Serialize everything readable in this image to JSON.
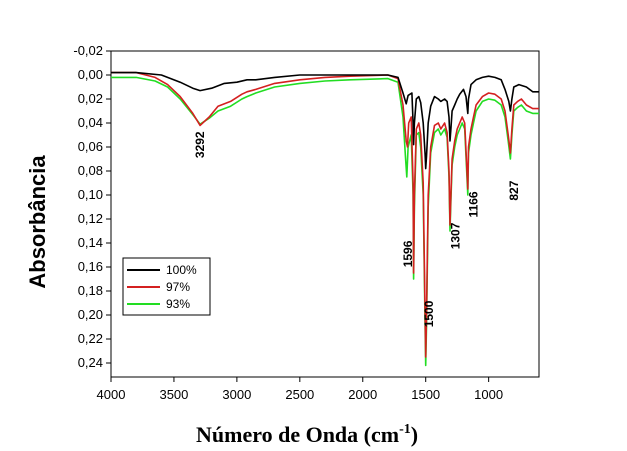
{
  "chart_data": {
    "type": "line",
    "xlabel": "Número de Onda (cm",
    "xlabel_sup": "-1",
    "xlabel_end": ")",
    "ylabel": "Absorbância",
    "xlim": [
      4000,
      600
    ],
    "ylim": [
      -0.02,
      0.25
    ],
    "x_reversed": true,
    "y_reversed": true,
    "x_ticks": [
      4000,
      3500,
      3000,
      2500,
      2000,
      1500,
      1000
    ],
    "x_tick_labels": [
      "4000",
      "3500",
      "3000",
      "2500",
      "2000",
      "1500",
      "1000"
    ],
    "y_ticks": [
      -0.02,
      0.0,
      0.02,
      0.04,
      0.06,
      0.08,
      0.1,
      0.12,
      0.14,
      0.16,
      0.18,
      0.2,
      0.22,
      0.24
    ],
    "y_tick_labels": [
      "-0,02",
      "0,00",
      "0,02",
      "0,04",
      "0,06",
      "0,08",
      "0,10",
      "0,12",
      "0,14",
      "0,16",
      "0,18",
      "0,20",
      "0,22",
      "0,24"
    ],
    "grid": false,
    "legend_position": "bottom-left",
    "series": [
      {
        "name": "100%",
        "color": "#000000",
        "points": [
          [
            4000,
            -0.002
          ],
          [
            3800,
            -0.002
          ],
          [
            3600,
            0.0
          ],
          [
            3450,
            0.006
          ],
          [
            3350,
            0.011
          ],
          [
            3292,
            0.013
          ],
          [
            3200,
            0.011
          ],
          [
            3100,
            0.007
          ],
          [
            3000,
            0.006
          ],
          [
            2920,
            0.004
          ],
          [
            2850,
            0.004
          ],
          [
            2700,
            0.002
          ],
          [
            2500,
            0.0
          ],
          [
            2300,
            0.0
          ],
          [
            2100,
            0.0
          ],
          [
            1800,
            0.0
          ],
          [
            1720,
            0.002
          ],
          [
            1680,
            0.015
          ],
          [
            1655,
            0.024
          ],
          [
            1640,
            0.017
          ],
          [
            1610,
            0.015
          ],
          [
            1600,
            0.04
          ],
          [
            1596,
            0.058
          ],
          [
            1590,
            0.04
          ],
          [
            1575,
            0.02
          ],
          [
            1555,
            0.018
          ],
          [
            1540,
            0.023
          ],
          [
            1520,
            0.04
          ],
          [
            1505,
            0.066
          ],
          [
            1500,
            0.078
          ],
          [
            1494,
            0.068
          ],
          [
            1480,
            0.04
          ],
          [
            1460,
            0.026
          ],
          [
            1430,
            0.018
          ],
          [
            1400,
            0.02
          ],
          [
            1380,
            0.022
          ],
          [
            1350,
            0.02
          ],
          [
            1330,
            0.022
          ],
          [
            1315,
            0.035
          ],
          [
            1307,
            0.055
          ],
          [
            1300,
            0.045
          ],
          [
            1290,
            0.03
          ],
          [
            1270,
            0.025
          ],
          [
            1250,
            0.02
          ],
          [
            1230,
            0.016
          ],
          [
            1200,
            0.012
          ],
          [
            1180,
            0.018
          ],
          [
            1166,
            0.032
          ],
          [
            1160,
            0.02
          ],
          [
            1140,
            0.008
          ],
          [
            1100,
            0.004
          ],
          [
            1050,
            0.002
          ],
          [
            1000,
            0.001
          ],
          [
            950,
            0.002
          ],
          [
            900,
            0.004
          ],
          [
            870,
            0.012
          ],
          [
            840,
            0.022
          ],
          [
            827,
            0.03
          ],
          [
            815,
            0.02
          ],
          [
            800,
            0.01
          ],
          [
            760,
            0.008
          ],
          [
            700,
            0.01
          ],
          [
            650,
            0.014
          ],
          [
            600,
            0.014
          ]
        ]
      },
      {
        "name": "97%",
        "color": "#d42020",
        "points": [
          [
            4000,
            -0.002
          ],
          [
            3800,
            -0.002
          ],
          [
            3650,
            0.002
          ],
          [
            3550,
            0.008
          ],
          [
            3450,
            0.018
          ],
          [
            3350,
            0.032
          ],
          [
            3292,
            0.042
          ],
          [
            3220,
            0.035
          ],
          [
            3150,
            0.026
          ],
          [
            3050,
            0.022
          ],
          [
            2960,
            0.016
          ],
          [
            2920,
            0.014
          ],
          [
            2850,
            0.012
          ],
          [
            2700,
            0.007
          ],
          [
            2500,
            0.004
          ],
          [
            2300,
            0.002
          ],
          [
            2100,
            0.001
          ],
          [
            1800,
            0.0
          ],
          [
            1720,
            0.003
          ],
          [
            1680,
            0.025
          ],
          [
            1655,
            0.055
          ],
          [
            1645,
            0.06
          ],
          [
            1635,
            0.04
          ],
          [
            1615,
            0.035
          ],
          [
            1600,
            0.09
          ],
          [
            1596,
            0.165
          ],
          [
            1590,
            0.1
          ],
          [
            1575,
            0.045
          ],
          [
            1555,
            0.04
          ],
          [
            1540,
            0.05
          ],
          [
            1520,
            0.09
          ],
          [
            1505,
            0.2
          ],
          [
            1500,
            0.235
          ],
          [
            1494,
            0.2
          ],
          [
            1480,
            0.1
          ],
          [
            1460,
            0.06
          ],
          [
            1430,
            0.042
          ],
          [
            1400,
            0.04
          ],
          [
            1380,
            0.045
          ],
          [
            1350,
            0.04
          ],
          [
            1330,
            0.048
          ],
          [
            1315,
            0.08
          ],
          [
            1307,
            0.125
          ],
          [
            1300,
            0.1
          ],
          [
            1290,
            0.07
          ],
          [
            1270,
            0.055
          ],
          [
            1250,
            0.045
          ],
          [
            1230,
            0.04
          ],
          [
            1210,
            0.035
          ],
          [
            1190,
            0.04
          ],
          [
            1166,
            0.095
          ],
          [
            1160,
            0.06
          ],
          [
            1140,
            0.045
          ],
          [
            1120,
            0.035
          ],
          [
            1100,
            0.025
          ],
          [
            1050,
            0.018
          ],
          [
            1000,
            0.015
          ],
          [
            950,
            0.016
          ],
          [
            900,
            0.02
          ],
          [
            870,
            0.03
          ],
          [
            845,
            0.05
          ],
          [
            827,
            0.065
          ],
          [
            815,
            0.045
          ],
          [
            800,
            0.025
          ],
          [
            770,
            0.022
          ],
          [
            740,
            0.02
          ],
          [
            700,
            0.025
          ],
          [
            650,
            0.028
          ],
          [
            600,
            0.028
          ]
        ]
      },
      {
        "name": "93%",
        "color": "#22dd22",
        "points": [
          [
            4000,
            0.002
          ],
          [
            3800,
            0.002
          ],
          [
            3650,
            0.005
          ],
          [
            3550,
            0.01
          ],
          [
            3450,
            0.02
          ],
          [
            3350,
            0.033
          ],
          [
            3292,
            0.041
          ],
          [
            3220,
            0.036
          ],
          [
            3150,
            0.03
          ],
          [
            3050,
            0.026
          ],
          [
            2960,
            0.02
          ],
          [
            2920,
            0.018
          ],
          [
            2850,
            0.015
          ],
          [
            2700,
            0.01
          ],
          [
            2500,
            0.007
          ],
          [
            2300,
            0.005
          ],
          [
            2100,
            0.004
          ],
          [
            1800,
            0.003
          ],
          [
            1720,
            0.006
          ],
          [
            1680,
            0.035
          ],
          [
            1660,
            0.07
          ],
          [
            1650,
            0.085
          ],
          [
            1640,
            0.06
          ],
          [
            1615,
            0.05
          ],
          [
            1600,
            0.1
          ],
          [
            1596,
            0.17
          ],
          [
            1590,
            0.11
          ],
          [
            1575,
            0.05
          ],
          [
            1555,
            0.048
          ],
          [
            1540,
            0.06
          ],
          [
            1520,
            0.1
          ],
          [
            1505,
            0.21
          ],
          [
            1500,
            0.242
          ],
          [
            1494,
            0.21
          ],
          [
            1480,
            0.11
          ],
          [
            1460,
            0.065
          ],
          [
            1430,
            0.048
          ],
          [
            1400,
            0.045
          ],
          [
            1380,
            0.05
          ],
          [
            1350,
            0.045
          ],
          [
            1330,
            0.052
          ],
          [
            1315,
            0.085
          ],
          [
            1307,
            0.13
          ],
          [
            1300,
            0.105
          ],
          [
            1290,
            0.075
          ],
          [
            1270,
            0.06
          ],
          [
            1250,
            0.05
          ],
          [
            1230,
            0.045
          ],
          [
            1210,
            0.04
          ],
          [
            1190,
            0.045
          ],
          [
            1166,
            0.1
          ],
          [
            1160,
            0.065
          ],
          [
            1140,
            0.05
          ],
          [
            1120,
            0.04
          ],
          [
            1100,
            0.03
          ],
          [
            1050,
            0.022
          ],
          [
            1000,
            0.02
          ],
          [
            950,
            0.021
          ],
          [
            900,
            0.025
          ],
          [
            870,
            0.035
          ],
          [
            845,
            0.055
          ],
          [
            827,
            0.07
          ],
          [
            815,
            0.05
          ],
          [
            800,
            0.03
          ],
          [
            770,
            0.027
          ],
          [
            740,
            0.025
          ],
          [
            700,
            0.03
          ],
          [
            650,
            0.032
          ],
          [
            600,
            0.032
          ]
        ]
      }
    ],
    "annotations": [
      {
        "text": "3292",
        "x": 3292,
        "y": 0.047
      },
      {
        "text": "1596",
        "x": 1640,
        "y": 0.138
      },
      {
        "text": "1500",
        "x": 1475,
        "y": 0.188
      },
      {
        "text": "1307",
        "x": 1265,
        "y": 0.123
      },
      {
        "text": "1166",
        "x": 1120,
        "y": 0.097
      },
      {
        "text": "827",
        "x": 800,
        "y": 0.088
      }
    ]
  }
}
